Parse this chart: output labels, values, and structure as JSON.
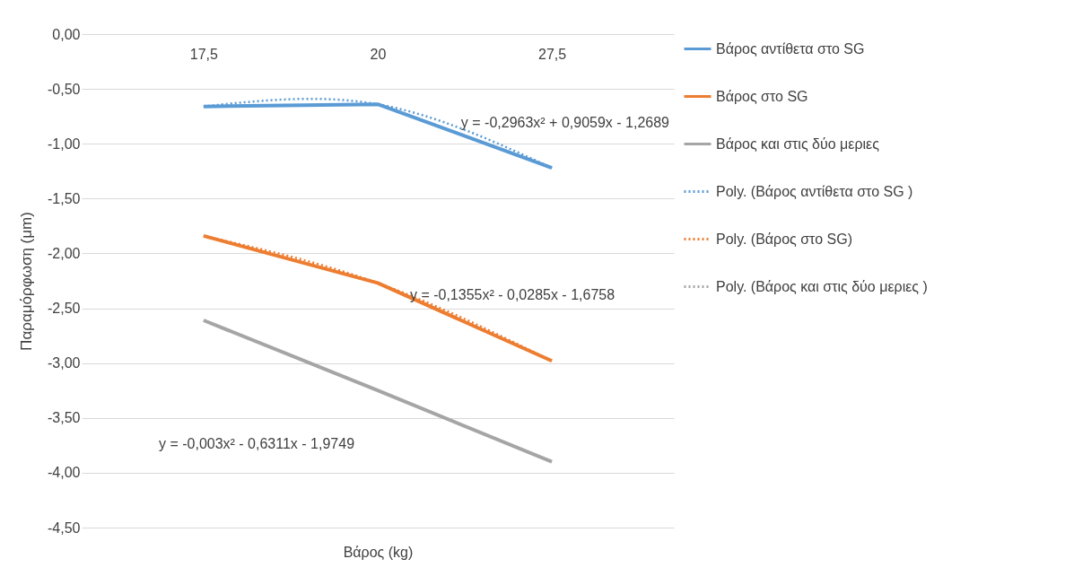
{
  "chart_data": {
    "type": "line",
    "xlabel": "Βάρος (kg)",
    "ylabel": "Παραμόρφωση (μm)",
    "categories": [
      "17,5",
      "20",
      "27,5"
    ],
    "series": [
      {
        "name": "Βάρος αντίθετα στο SG",
        "color": "#5b9bd5",
        "values": [
          -0.66,
          -0.64,
          -1.22
        ]
      },
      {
        "name": "Βάρος στο SG",
        "color": "#ed7d31",
        "values": [
          -1.84,
          -2.27,
          -2.98
        ]
      },
      {
        "name": "Βάρος και στις δύο μεριες",
        "color": "#a5a5a5",
        "values": [
          -2.61,
          -3.25,
          -3.9
        ]
      },
      {
        "name": "Poly. (Βάρος αντίθετα στο SG )",
        "color": "#5b9bd5",
        "line_style": "dotted",
        "values": [
          -0.66,
          -0.64,
          -1.22
        ]
      },
      {
        "name": "Poly. (Βάρος στο SG)",
        "color": "#ed7d31",
        "line_style": "dotted",
        "values": [
          -1.84,
          -2.27,
          -2.98
        ]
      },
      {
        "name": "Poly. (Βάρος και στις δύο μεριες )",
        "color": "#a5a5a5",
        "line_style": "dotted",
        "values": [
          null,
          null,
          null
        ]
      }
    ],
    "ylim": [
      -4.5,
      0
    ],
    "yticks": [
      {
        "value": 0,
        "label": "0,00"
      },
      {
        "value": -0.5,
        "label": "-0,50"
      },
      {
        "value": -1,
        "label": "-1,00"
      },
      {
        "value": -1.5,
        "label": "-1,50"
      },
      {
        "value": -2,
        "label": "-2,00"
      },
      {
        "value": -2.5,
        "label": "-2,50"
      },
      {
        "value": -3,
        "label": "-3,00"
      },
      {
        "value": -3.5,
        "label": "-3,50"
      },
      {
        "value": -4,
        "label": "-4,00"
      },
      {
        "value": -4.5,
        "label": "-4,50"
      }
    ],
    "annotations": [
      "y = -0,2963x² + 0,9059x - 1,2689",
      "y = -0,1355x² - 0,0285x - 1,6758",
      "y = -0,003x² - 0,6311x - 1,9749"
    ],
    "grid": "y",
    "legend": "right",
    "marker": "none",
    "line_style": "solid"
  }
}
